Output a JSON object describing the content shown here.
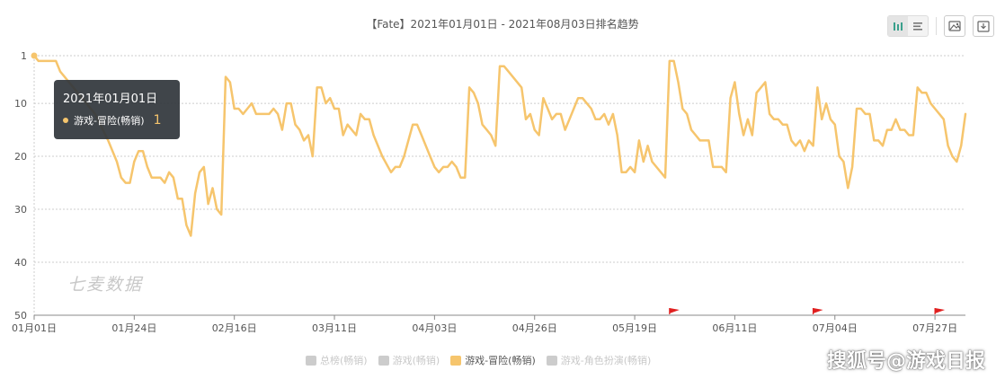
{
  "chart_data": {
    "type": "line",
    "title": "【Fate】2021年01月01日 - 2021年08月03日排名趋势",
    "x_start": "2021-01-01",
    "x_end": "2021-08-03",
    "x_ticks": [
      "01月01日",
      "01月24日",
      "02月16日",
      "03月11日",
      "04月03日",
      "04月26日",
      "05月19日",
      "06月11日",
      "07月04日",
      "07月27日"
    ],
    "y_ticks": [
      1,
      10,
      20,
      30,
      40,
      50
    ],
    "y_range": [
      1,
      50
    ],
    "y_inverted": true,
    "grid": true,
    "series": [
      {
        "name": "游戏-冒险(畅销)",
        "color": "#f6c56d",
        "points": [
          [
            "2021-01-01",
            1
          ],
          [
            "2021-01-02",
            2
          ],
          [
            "2021-01-06",
            2
          ],
          [
            "2021-01-07",
            4
          ],
          [
            "2021-01-08",
            5
          ],
          [
            "2021-01-10",
            7
          ],
          [
            "2021-01-12",
            9
          ],
          [
            "2021-01-15",
            12
          ],
          [
            "2021-01-18",
            17
          ],
          [
            "2021-01-20",
            21
          ],
          [
            "2021-01-21",
            24
          ],
          [
            "2021-01-22",
            25
          ],
          [
            "2021-01-23",
            25
          ],
          [
            "2021-01-24",
            21
          ],
          [
            "2021-01-25",
            19
          ],
          [
            "2021-01-26",
            19
          ],
          [
            "2021-01-27",
            22
          ],
          [
            "2021-01-28",
            24
          ],
          [
            "2021-01-30",
            24
          ],
          [
            "2021-01-31",
            25
          ],
          [
            "2021-02-01",
            23
          ],
          [
            "2021-02-02",
            24
          ],
          [
            "2021-02-03",
            28
          ],
          [
            "2021-02-04",
            28
          ],
          [
            "2021-02-05",
            33
          ],
          [
            "2021-02-06",
            35
          ],
          [
            "2021-02-07",
            27
          ],
          [
            "2021-02-08",
            23
          ],
          [
            "2021-02-09",
            22
          ],
          [
            "2021-02-10",
            29
          ],
          [
            "2021-02-11",
            26
          ],
          [
            "2021-02-12",
            30
          ],
          [
            "2021-02-13",
            31
          ],
          [
            "2021-02-14",
            5
          ],
          [
            "2021-02-15",
            6
          ],
          [
            "2021-02-16",
            11
          ],
          [
            "2021-02-17",
            11
          ],
          [
            "2021-02-18",
            12
          ],
          [
            "2021-02-19",
            11
          ],
          [
            "2021-02-20",
            10
          ],
          [
            "2021-02-21",
            12
          ],
          [
            "2021-02-23",
            12
          ],
          [
            "2021-02-24",
            12
          ],
          [
            "2021-02-25",
            11
          ],
          [
            "2021-02-26",
            12
          ],
          [
            "2021-02-27",
            15
          ],
          [
            "2021-02-28",
            10
          ],
          [
            "2021-03-01",
            10
          ],
          [
            "2021-03-02",
            14
          ],
          [
            "2021-03-03",
            15
          ],
          [
            "2021-03-04",
            17
          ],
          [
            "2021-03-05",
            16
          ],
          [
            "2021-03-06",
            20
          ],
          [
            "2021-03-07",
            7
          ],
          [
            "2021-03-08",
            7
          ],
          [
            "2021-03-09",
            10
          ],
          [
            "2021-03-10",
            9
          ],
          [
            "2021-03-11",
            11
          ],
          [
            "2021-03-12",
            11
          ],
          [
            "2021-03-13",
            16
          ],
          [
            "2021-03-14",
            14
          ],
          [
            "2021-03-16",
            16
          ],
          [
            "2021-03-17",
            12
          ],
          [
            "2021-03-18",
            13
          ],
          [
            "2021-03-19",
            13
          ],
          [
            "2021-03-20",
            16
          ],
          [
            "2021-03-22",
            20
          ],
          [
            "2021-03-24",
            23
          ],
          [
            "2021-03-25",
            22
          ],
          [
            "2021-03-26",
            22
          ],
          [
            "2021-03-27",
            20
          ],
          [
            "2021-03-28",
            17
          ],
          [
            "2021-03-29",
            14
          ],
          [
            "2021-03-30",
            14
          ],
          [
            "2021-03-31",
            16
          ],
          [
            "2021-04-01",
            18
          ],
          [
            "2021-04-02",
            20
          ],
          [
            "2021-04-03",
            22
          ],
          [
            "2021-04-04",
            23
          ],
          [
            "2021-04-05",
            22
          ],
          [
            "2021-04-06",
            22
          ],
          [
            "2021-04-07",
            21
          ],
          [
            "2021-04-08",
            22
          ],
          [
            "2021-04-09",
            24
          ],
          [
            "2021-04-10",
            24
          ],
          [
            "2021-04-11",
            7
          ],
          [
            "2021-04-12",
            8
          ],
          [
            "2021-04-13",
            10
          ],
          [
            "2021-04-14",
            14
          ],
          [
            "2021-04-15",
            15
          ],
          [
            "2021-04-16",
            16
          ],
          [
            "2021-04-17",
            18
          ],
          [
            "2021-04-18",
            3
          ],
          [
            "2021-04-19",
            3
          ],
          [
            "2021-04-20",
            4
          ],
          [
            "2021-04-23",
            7
          ],
          [
            "2021-04-24",
            13
          ],
          [
            "2021-04-25",
            12
          ],
          [
            "2021-04-26",
            15
          ],
          [
            "2021-04-27",
            16
          ],
          [
            "2021-04-28",
            9
          ],
          [
            "2021-04-29",
            11
          ],
          [
            "2021-04-30",
            13
          ],
          [
            "2021-05-01",
            12
          ],
          [
            "2021-05-02",
            12
          ],
          [
            "2021-05-03",
            15
          ],
          [
            "2021-05-04",
            13
          ],
          [
            "2021-05-06",
            9
          ],
          [
            "2021-05-07",
            9
          ],
          [
            "2021-05-08",
            10
          ],
          [
            "2021-05-09",
            11
          ],
          [
            "2021-05-10",
            13
          ],
          [
            "2021-05-11",
            13
          ],
          [
            "2021-05-12",
            12
          ],
          [
            "2021-05-13",
            14
          ],
          [
            "2021-05-14",
            12
          ],
          [
            "2021-05-15",
            16
          ],
          [
            "2021-05-16",
            23
          ],
          [
            "2021-05-17",
            23
          ],
          [
            "2021-05-18",
            22
          ],
          [
            "2021-05-19",
            23
          ],
          [
            "2021-05-20",
            17
          ],
          [
            "2021-05-21",
            21
          ],
          [
            "2021-05-22",
            18
          ],
          [
            "2021-05-23",
            21
          ],
          [
            "2021-05-26",
            24
          ],
          [
            "2021-05-27",
            2
          ],
          [
            "2021-05-28",
            2
          ],
          [
            "2021-05-29",
            6
          ],
          [
            "2021-05-30",
            11
          ],
          [
            "2021-05-31",
            12
          ],
          [
            "2021-06-01",
            15
          ],
          [
            "2021-06-02",
            16
          ],
          [
            "2021-06-03",
            17
          ],
          [
            "2021-06-05",
            17
          ],
          [
            "2021-06-06",
            22
          ],
          [
            "2021-06-08",
            22
          ],
          [
            "2021-06-09",
            23
          ],
          [
            "2021-06-10",
            9
          ],
          [
            "2021-06-11",
            6
          ],
          [
            "2021-06-12",
            12
          ],
          [
            "2021-06-13",
            16
          ],
          [
            "2021-06-14",
            13
          ],
          [
            "2021-06-15",
            16
          ],
          [
            "2021-06-16",
            8
          ],
          [
            "2021-06-17",
            7
          ],
          [
            "2021-06-18",
            6
          ],
          [
            "2021-06-19",
            12
          ],
          [
            "2021-06-20",
            13
          ],
          [
            "2021-06-21",
            13
          ],
          [
            "2021-06-22",
            14
          ],
          [
            "2021-06-23",
            14
          ],
          [
            "2021-06-24",
            17
          ],
          [
            "2021-06-25",
            18
          ],
          [
            "2021-06-26",
            17
          ],
          [
            "2021-06-27",
            19
          ],
          [
            "2021-06-28",
            17
          ],
          [
            "2021-06-29",
            18
          ],
          [
            "2021-06-30",
            7
          ],
          [
            "2021-07-01",
            13
          ],
          [
            "2021-07-02",
            10
          ],
          [
            "2021-07-03",
            13
          ],
          [
            "2021-07-04",
            14
          ],
          [
            "2021-07-05",
            20
          ],
          [
            "2021-07-06",
            21
          ],
          [
            "2021-07-07",
            26
          ],
          [
            "2021-07-08",
            22
          ],
          [
            "2021-07-09",
            11
          ],
          [
            "2021-07-10",
            11
          ],
          [
            "2021-07-11",
            12
          ],
          [
            "2021-07-12",
            12
          ],
          [
            "2021-07-13",
            17
          ],
          [
            "2021-07-14",
            17
          ],
          [
            "2021-07-15",
            18
          ],
          [
            "2021-07-16",
            15
          ],
          [
            "2021-07-17",
            15
          ],
          [
            "2021-07-18",
            13
          ],
          [
            "2021-07-19",
            15
          ],
          [
            "2021-07-20",
            15
          ],
          [
            "2021-07-21",
            16
          ],
          [
            "2021-07-22",
            16
          ],
          [
            "2021-07-23",
            7
          ],
          [
            "2021-07-24",
            8
          ],
          [
            "2021-07-25",
            8
          ],
          [
            "2021-07-26",
            10
          ],
          [
            "2021-07-27",
            11
          ],
          [
            "2021-07-28",
            12
          ],
          [
            "2021-07-29",
            13
          ],
          [
            "2021-07-30",
            18
          ],
          [
            "2021-07-31",
            20
          ],
          [
            "2021-08-01",
            21
          ],
          [
            "2021-08-02",
            18
          ],
          [
            "2021-08-03",
            12
          ]
        ]
      }
    ],
    "legend": {
      "placement": "bottom",
      "items": [
        {
          "label": "总榜(畅销)",
          "active": false
        },
        {
          "label": "游戏(畅销)",
          "active": false
        },
        {
          "label": "游戏-冒险(畅销)",
          "active": true
        },
        {
          "label": "游戏-角色扮演(畅销)",
          "active": false
        }
      ]
    },
    "markers": [
      {
        "date": "2021-05-27",
        "type": "flag",
        "color": "#e02020"
      },
      {
        "date": "2021-06-29",
        "type": "flag",
        "color": "#e02020"
      },
      {
        "date": "2021-07-27",
        "type": "flag",
        "color": "#e02020"
      }
    ]
  },
  "tooltip": {
    "date": "2021年01月01日",
    "series_label": "游戏-冒险(畅销)",
    "value": "1"
  },
  "watermark": "七麦数据",
  "credit": "搜狐号@游戏日报",
  "toolbar": {
    "icons": [
      "bar-chart-icon",
      "list-icon",
      "image-icon",
      "download-icon"
    ]
  },
  "colors": {
    "line": "#f6c56d",
    "grid": "#cccccc",
    "flag": "#e02020"
  }
}
